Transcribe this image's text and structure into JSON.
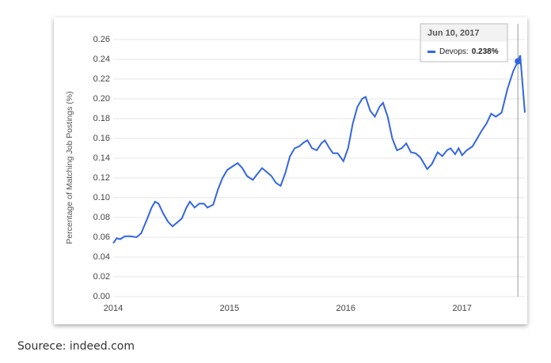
{
  "chart_data": {
    "type": "line",
    "y_label": "Percentage of Matching Job Postings (%)",
    "xlim": [
      2014,
      2017.54
    ],
    "xticks": [
      2014,
      2015,
      2016,
      2017
    ],
    "ylim": [
      0,
      0.26
    ],
    "yticks": [
      {
        "value": 0,
        "label": "0.00"
      },
      0.02,
      0.04,
      0.06,
      0.08,
      {
        "value": 0.1,
        "label": "0.10"
      },
      0.12,
      0.14,
      0.16,
      0.18,
      {
        "value": 0.2,
        "label": "0.20"
      },
      0.22,
      0.24,
      0.26
    ],
    "grid": true,
    "series": [
      {
        "color": "#3366e0",
        "x": [
          2014.0,
          2014.03,
          2014.06,
          2014.1,
          2014.15,
          2014.2,
          2014.24,
          2014.29,
          2014.33,
          2014.36,
          2014.39,
          2014.43,
          2014.47,
          2014.51,
          2014.55,
          2014.59,
          2014.63,
          2014.66,
          2014.7,
          2014.74,
          2014.78,
          2014.81,
          2014.86,
          2014.9,
          2014.94,
          2014.98,
          2015.03,
          2015.07,
          2015.11,
          2015.15,
          2015.2,
          2015.24,
          2015.28,
          2015.32,
          2015.36,
          2015.4,
          2015.44,
          2015.48,
          2015.52,
          2015.56,
          2015.6,
          2015.64,
          2015.67,
          2015.71,
          2015.75,
          2015.79,
          2015.82,
          2015.86,
          2015.89,
          2015.93,
          2015.98,
          2016.02,
          2016.06,
          2016.1,
          2016.14,
          2016.17,
          2016.21,
          2016.25,
          2016.29,
          2016.32,
          2016.36,
          2016.4,
          2016.44,
          2016.48,
          2016.52,
          2016.56,
          2016.6,
          2016.64,
          2016.7,
          2016.74,
          2016.79,
          2016.83,
          2016.87,
          2016.9,
          2016.94,
          2016.97,
          2017.0,
          2017.04,
          2017.09,
          2017.13,
          2017.17,
          2017.21,
          2017.25,
          2017.29,
          2017.34,
          2017.39,
          2017.44,
          2017.48,
          2017.5,
          2017.54
        ],
        "values": [
          0.054,
          0.059,
          0.058,
          0.061,
          0.061,
          0.06,
          0.064,
          0.078,
          0.09,
          0.096,
          0.094,
          0.084,
          0.076,
          0.071,
          0.075,
          0.079,
          0.09,
          0.096,
          0.09,
          0.094,
          0.094,
          0.09,
          0.093,
          0.108,
          0.12,
          0.128,
          0.132,
          0.135,
          0.13,
          0.122,
          0.118,
          0.124,
          0.13,
          0.126,
          0.122,
          0.115,
          0.112,
          0.125,
          0.142,
          0.15,
          0.152,
          0.156,
          0.158,
          0.15,
          0.148,
          0.155,
          0.158,
          0.15,
          0.145,
          0.145,
          0.137,
          0.15,
          0.175,
          0.192,
          0.2,
          0.202,
          0.188,
          0.182,
          0.192,
          0.196,
          0.182,
          0.16,
          0.148,
          0.15,
          0.155,
          0.146,
          0.145,
          0.141,
          0.129,
          0.134,
          0.146,
          0.142,
          0.148,
          0.15,
          0.144,
          0.15,
          0.143,
          0.148,
          0.152,
          0.16,
          0.168,
          0.175,
          0.185,
          0.182,
          0.186,
          0.21,
          0.228,
          0.238,
          0.244,
          0.186
        ]
      }
    ],
    "tooltip": {
      "date": "Jun 10, 2017",
      "label": "Devops:",
      "x": 2017.48,
      "value": 0.238,
      "value_label": "0.238%"
    }
  },
  "caption": "Sourece: indeed.com"
}
